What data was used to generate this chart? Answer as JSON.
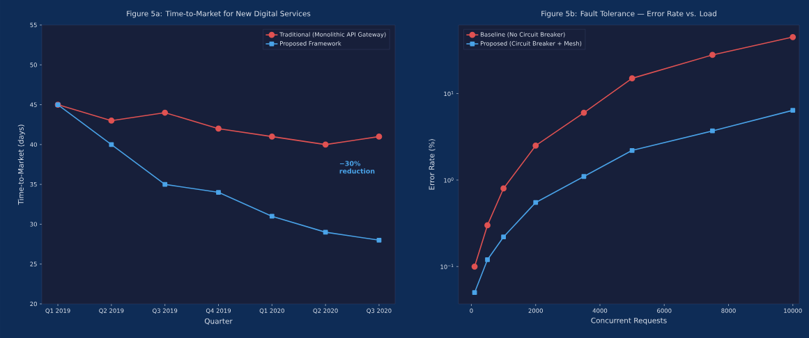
{
  "chart_data": [
    {
      "type": "line",
      "title": "Figure 5a: Time-to-Market for New Digital Services",
      "xlabel": "Quarter",
      "ylabel": "Time-to-Market (days)",
      "categories": [
        "Q1 2019",
        "Q2 2019",
        "Q3 2019",
        "Q4 2019",
        "Q1 2020",
        "Q2 2020",
        "Q3 2020"
      ],
      "series": [
        {
          "name": "Traditional (Monolithic API Gateway)",
          "color": "#e05252",
          "marker": "circle",
          "values": [
            45,
            43,
            44,
            42,
            41,
            40,
            41
          ]
        },
        {
          "name": "Proposed Framework",
          "color": "#4aa3e8",
          "marker": "square",
          "values": [
            45,
            40,
            35,
            34,
            31,
            29,
            28
          ]
        }
      ],
      "ylim": [
        20,
        55
      ],
      "yticks": [
        20,
        25,
        30,
        35,
        40,
        45,
        50,
        55
      ],
      "legend": "top right",
      "annotations": [
        "−30% reduction"
      ]
    },
    {
      "type": "line",
      "title": "Figure 5b: Fault Tolerance — Error Rate vs. Load",
      "xlabel": "Concurrent Requests",
      "ylabel": "Error Rate (%)",
      "x": [
        100,
        500,
        1000,
        2000,
        3500,
        5000,
        7500,
        10000
      ],
      "series": [
        {
          "name": "Baseline (No Circuit Breaker)",
          "color": "#e05252",
          "marker": "circle",
          "values": [
            0.1,
            0.3,
            0.8,
            2.5,
            6,
            15,
            28,
            45
          ]
        },
        {
          "name": "Proposed (Circuit Breaker + Mesh)",
          "color": "#4aa3e8",
          "marker": "square",
          "values": [
            0.05,
            0.12,
            0.22,
            0.55,
            1.1,
            2.2,
            3.7,
            6.4
          ]
        }
      ],
      "log": true,
      "xlim": [
        -400,
        10200
      ],
      "xticks": [
        0,
        2000,
        4000,
        6000,
        8000,
        10000
      ],
      "ylim": [
        0.037,
        62
      ],
      "yticks": [
        {
          "value": 0.1,
          "label": "10$^{−1}$"
        },
        {
          "value": 1,
          "label": "10$^{0}$"
        },
        {
          "value": 10,
          "label": "10$^{1}$"
        }
      ],
      "legend": "top left"
    }
  ]
}
